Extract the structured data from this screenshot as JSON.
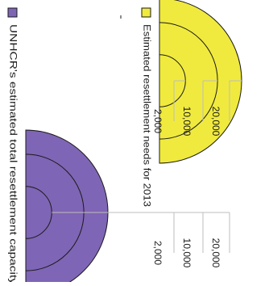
{
  "chart_data": {
    "type": "bubble-size-legend",
    "scale_values": [
      2000,
      10000,
      20000
    ],
    "scale_labels": [
      "2,000",
      "10,000",
      "20,000"
    ],
    "legend": [
      {
        "label": "Estimated resettlement needs for 2013",
        "color": "#f0ea3e"
      },
      {
        "label": "UNHCR's estimated total resettlement capacity",
        "color": "#7f65b5"
      }
    ]
  },
  "colors": {
    "outline": "#1a1a1a",
    "leader_line": "#bdbdbd"
  }
}
